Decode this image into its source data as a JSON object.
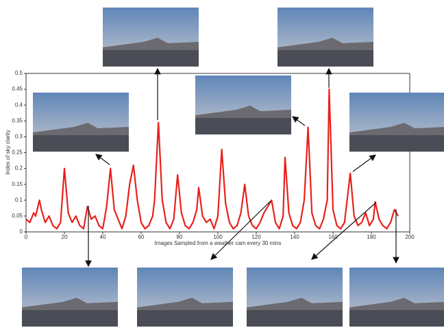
{
  "chart_data": {
    "type": "line",
    "y_label": "Index of sky clarity",
    "x_label": "Images Sampled from a weather cam every 30 mins",
    "xlim": [
      0,
      200
    ],
    "xticks": [
      0,
      20,
      40,
      60,
      80,
      100,
      120,
      140,
      160,
      180,
      200
    ],
    "ylim": [
      0,
      0.5
    ],
    "yticks": [
      0,
      0.05,
      0.1,
      0.15,
      0.2,
      0.25,
      0.3,
      0.35,
      0.4,
      0.45,
      0.5
    ],
    "grid": false,
    "series": [
      {
        "color": "#e8201c",
        "x": [
          0,
          2,
          4,
          5,
          7,
          8,
          10,
          12,
          14,
          16,
          18,
          20,
          22,
          24,
          26,
          28,
          30,
          32,
          34,
          36,
          38,
          40,
          42,
          44,
          46,
          48,
          50,
          52,
          54,
          56,
          58,
          60,
          62,
          64,
          66,
          67,
          69,
          71,
          73,
          75,
          77,
          79,
          81,
          83,
          85,
          87,
          89,
          90,
          92,
          94,
          96,
          98,
          100,
          102,
          104,
          106,
          108,
          110,
          112,
          114,
          116,
          118,
          120,
          122,
          124,
          126,
          128,
          130,
          132,
          134,
          135,
          137,
          139,
          141,
          143,
          145,
          147,
          149,
          151,
          153,
          155,
          157,
          158,
          160,
          162,
          164,
          166,
          169,
          171,
          173,
          175,
          177,
          179,
          181,
          182,
          184,
          186,
          188,
          190,
          192,
          193,
          194
        ],
        "values": [
          0.04,
          0.03,
          0.06,
          0.05,
          0.1,
          0.07,
          0.03,
          0.05,
          0.02,
          0.01,
          0.03,
          0.2,
          0.06,
          0.03,
          0.05,
          0.02,
          0.01,
          0.08,
          0.04,
          0.05,
          0.02,
          0.01,
          0.08,
          0.2,
          0.07,
          0.04,
          0.01,
          0.05,
          0.15,
          0.21,
          0.1,
          0.03,
          0.01,
          0.02,
          0.05,
          0.1,
          0.345,
          0.1,
          0.03,
          0.01,
          0.04,
          0.18,
          0.06,
          0.02,
          0.01,
          0.03,
          0.07,
          0.14,
          0.05,
          0.03,
          0.04,
          0.01,
          0.05,
          0.26,
          0.09,
          0.03,
          0.01,
          0.02,
          0.06,
          0.15,
          0.05,
          0.02,
          0.01,
          0.03,
          0.06,
          0.08,
          0.1,
          0.03,
          0.01,
          0.05,
          0.235,
          0.06,
          0.02,
          0.01,
          0.03,
          0.1,
          0.33,
          0.06,
          0.02,
          0.01,
          0.04,
          0.1,
          0.45,
          0.07,
          0.02,
          0.01,
          0.03,
          0.185,
          0.05,
          0.02,
          0.03,
          0.06,
          0.02,
          0.04,
          0.095,
          0.04,
          0.02,
          0.01,
          0.03,
          0.07,
          0.06,
          0.05
        ]
      }
    ]
  }
}
